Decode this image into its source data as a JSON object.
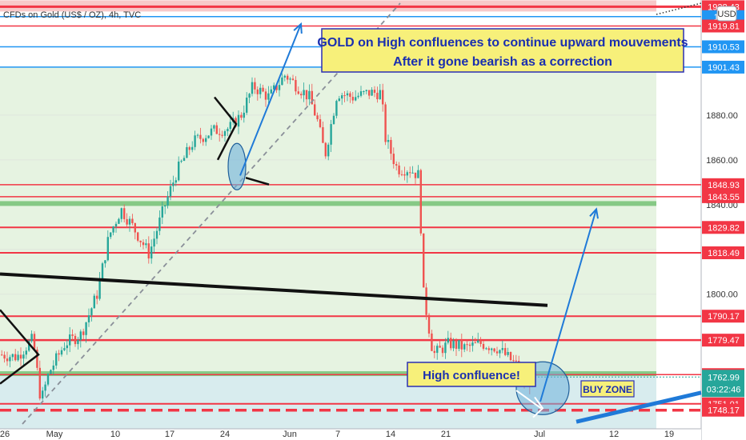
{
  "header": {
    "symbol_title": "CFDs on Gold (US$ / OZ), 4h, TVC",
    "currency_badge": "USD"
  },
  "annotations": {
    "main_line1": "GOLD on High confluences to continue upward mouvements",
    "main_line2": "After it gone bearish as a correction",
    "high_confluence": "High confluence!",
    "buy_zone": "BUY ZONE"
  },
  "chart_data": {
    "type": "candlestick",
    "title": "CFDs on Gold (US$ / OZ), 4h, TVC",
    "ylim": [
      1742,
      1930
    ],
    "y_ticks": [
      1800,
      1820,
      1840,
      1860,
      1880
    ],
    "x_ticks": [
      "26",
      "May",
      "10",
      "17",
      "24",
      "Jun",
      "7",
      "14",
      "21",
      "Jul",
      "12",
      "19"
    ],
    "last_price": 1762.99,
    "countdown": "03:22:46",
    "price_lines": [
      {
        "value": 1928.43,
        "label": "1928.43",
        "color": "#f23645",
        "style": "solid",
        "width": 3
      },
      {
        "value": 1924.0,
        "label": "1924",
        "color": "#2196f3",
        "style": "solid",
        "width": 1.5
      },
      {
        "value": 1919.81,
        "label": "1919.81",
        "color": "#f23645",
        "style": "solid",
        "width": 1.5
      },
      {
        "value": 1910.53,
        "label": "1910.53",
        "color": "#2196f3",
        "style": "solid",
        "width": 1.5
      },
      {
        "value": 1901.43,
        "label": "1901.43",
        "color": "#2196f3",
        "style": "solid",
        "width": 1.5
      },
      {
        "value": 1848.93,
        "label": "1848.93",
        "color": "#f23645",
        "style": "solid",
        "width": 1.5
      },
      {
        "value": 1843.55,
        "label": "1843.55",
        "color": "#f23645",
        "style": "solid",
        "width": 1.5
      },
      {
        "value": 1829.82,
        "label": "1829.82",
        "color": "#f23645",
        "style": "solid",
        "width": 2
      },
      {
        "value": 1818.49,
        "label": "1818.49",
        "color": "#f23645",
        "style": "solid",
        "width": 2
      },
      {
        "value": 1790.17,
        "label": "1790.17",
        "color": "#f23645",
        "style": "solid",
        "width": 2
      },
      {
        "value": 1779.47,
        "label": "1779.47",
        "color": "#f23645",
        "style": "solid",
        "width": 2.5
      },
      {
        "value": 1764.07,
        "label": "1764.07",
        "color": "#f23645",
        "style": "solid",
        "width": 1.5
      },
      {
        "value": 1751.01,
        "label": "1751.01",
        "color": "#f23645",
        "style": "solid",
        "width": 2
      },
      {
        "value": 1748.17,
        "label": "1748.17",
        "color": "#f23645",
        "style": "dashed",
        "width": 3.5
      }
    ],
    "green_lines": [
      1840.5,
      1764.5
    ],
    "series": [
      {
        "name": "price_path",
        "values": [
          [
            0,
            1773
          ],
          [
            20,
            1772
          ],
          [
            40,
            1780
          ],
          [
            50,
            1752
          ],
          [
            60,
            1765
          ],
          [
            80,
            1778
          ],
          [
            100,
            1782
          ],
          [
            120,
            1800
          ],
          [
            135,
            1826
          ],
          [
            150,
            1838
          ],
          [
            165,
            1830
          ],
          [
            185,
            1818
          ],
          [
            205,
            1840
          ],
          [
            220,
            1855
          ],
          [
            240,
            1868
          ],
          [
            265,
            1873
          ],
          [
            285,
            1874
          ],
          [
            300,
            1880
          ],
          [
            315,
            1893
          ],
          [
            335,
            1888
          ],
          [
            355,
            1898
          ],
          [
            370,
            1893
          ],
          [
            385,
            1888
          ],
          [
            395,
            1878
          ],
          [
            405,
            1862
          ],
          [
            420,
            1890
          ],
          [
            440,
            1888
          ],
          [
            460,
            1890
          ],
          [
            475,
            1890
          ],
          [
            480,
            1870
          ],
          [
            495,
            1856
          ],
          [
            510,
            1856
          ],
          [
            522,
            1853
          ],
          [
            528,
            1800
          ],
          [
            540,
            1773
          ],
          [
            560,
            1778
          ],
          [
            580,
            1776
          ],
          [
            600,
            1778
          ],
          [
            620,
            1776
          ],
          [
            645,
            1768
          ],
          [
            655,
            1760
          ],
          [
            665,
            1762
          ],
          [
            680,
            1762
          ]
        ]
      }
    ]
  }
}
